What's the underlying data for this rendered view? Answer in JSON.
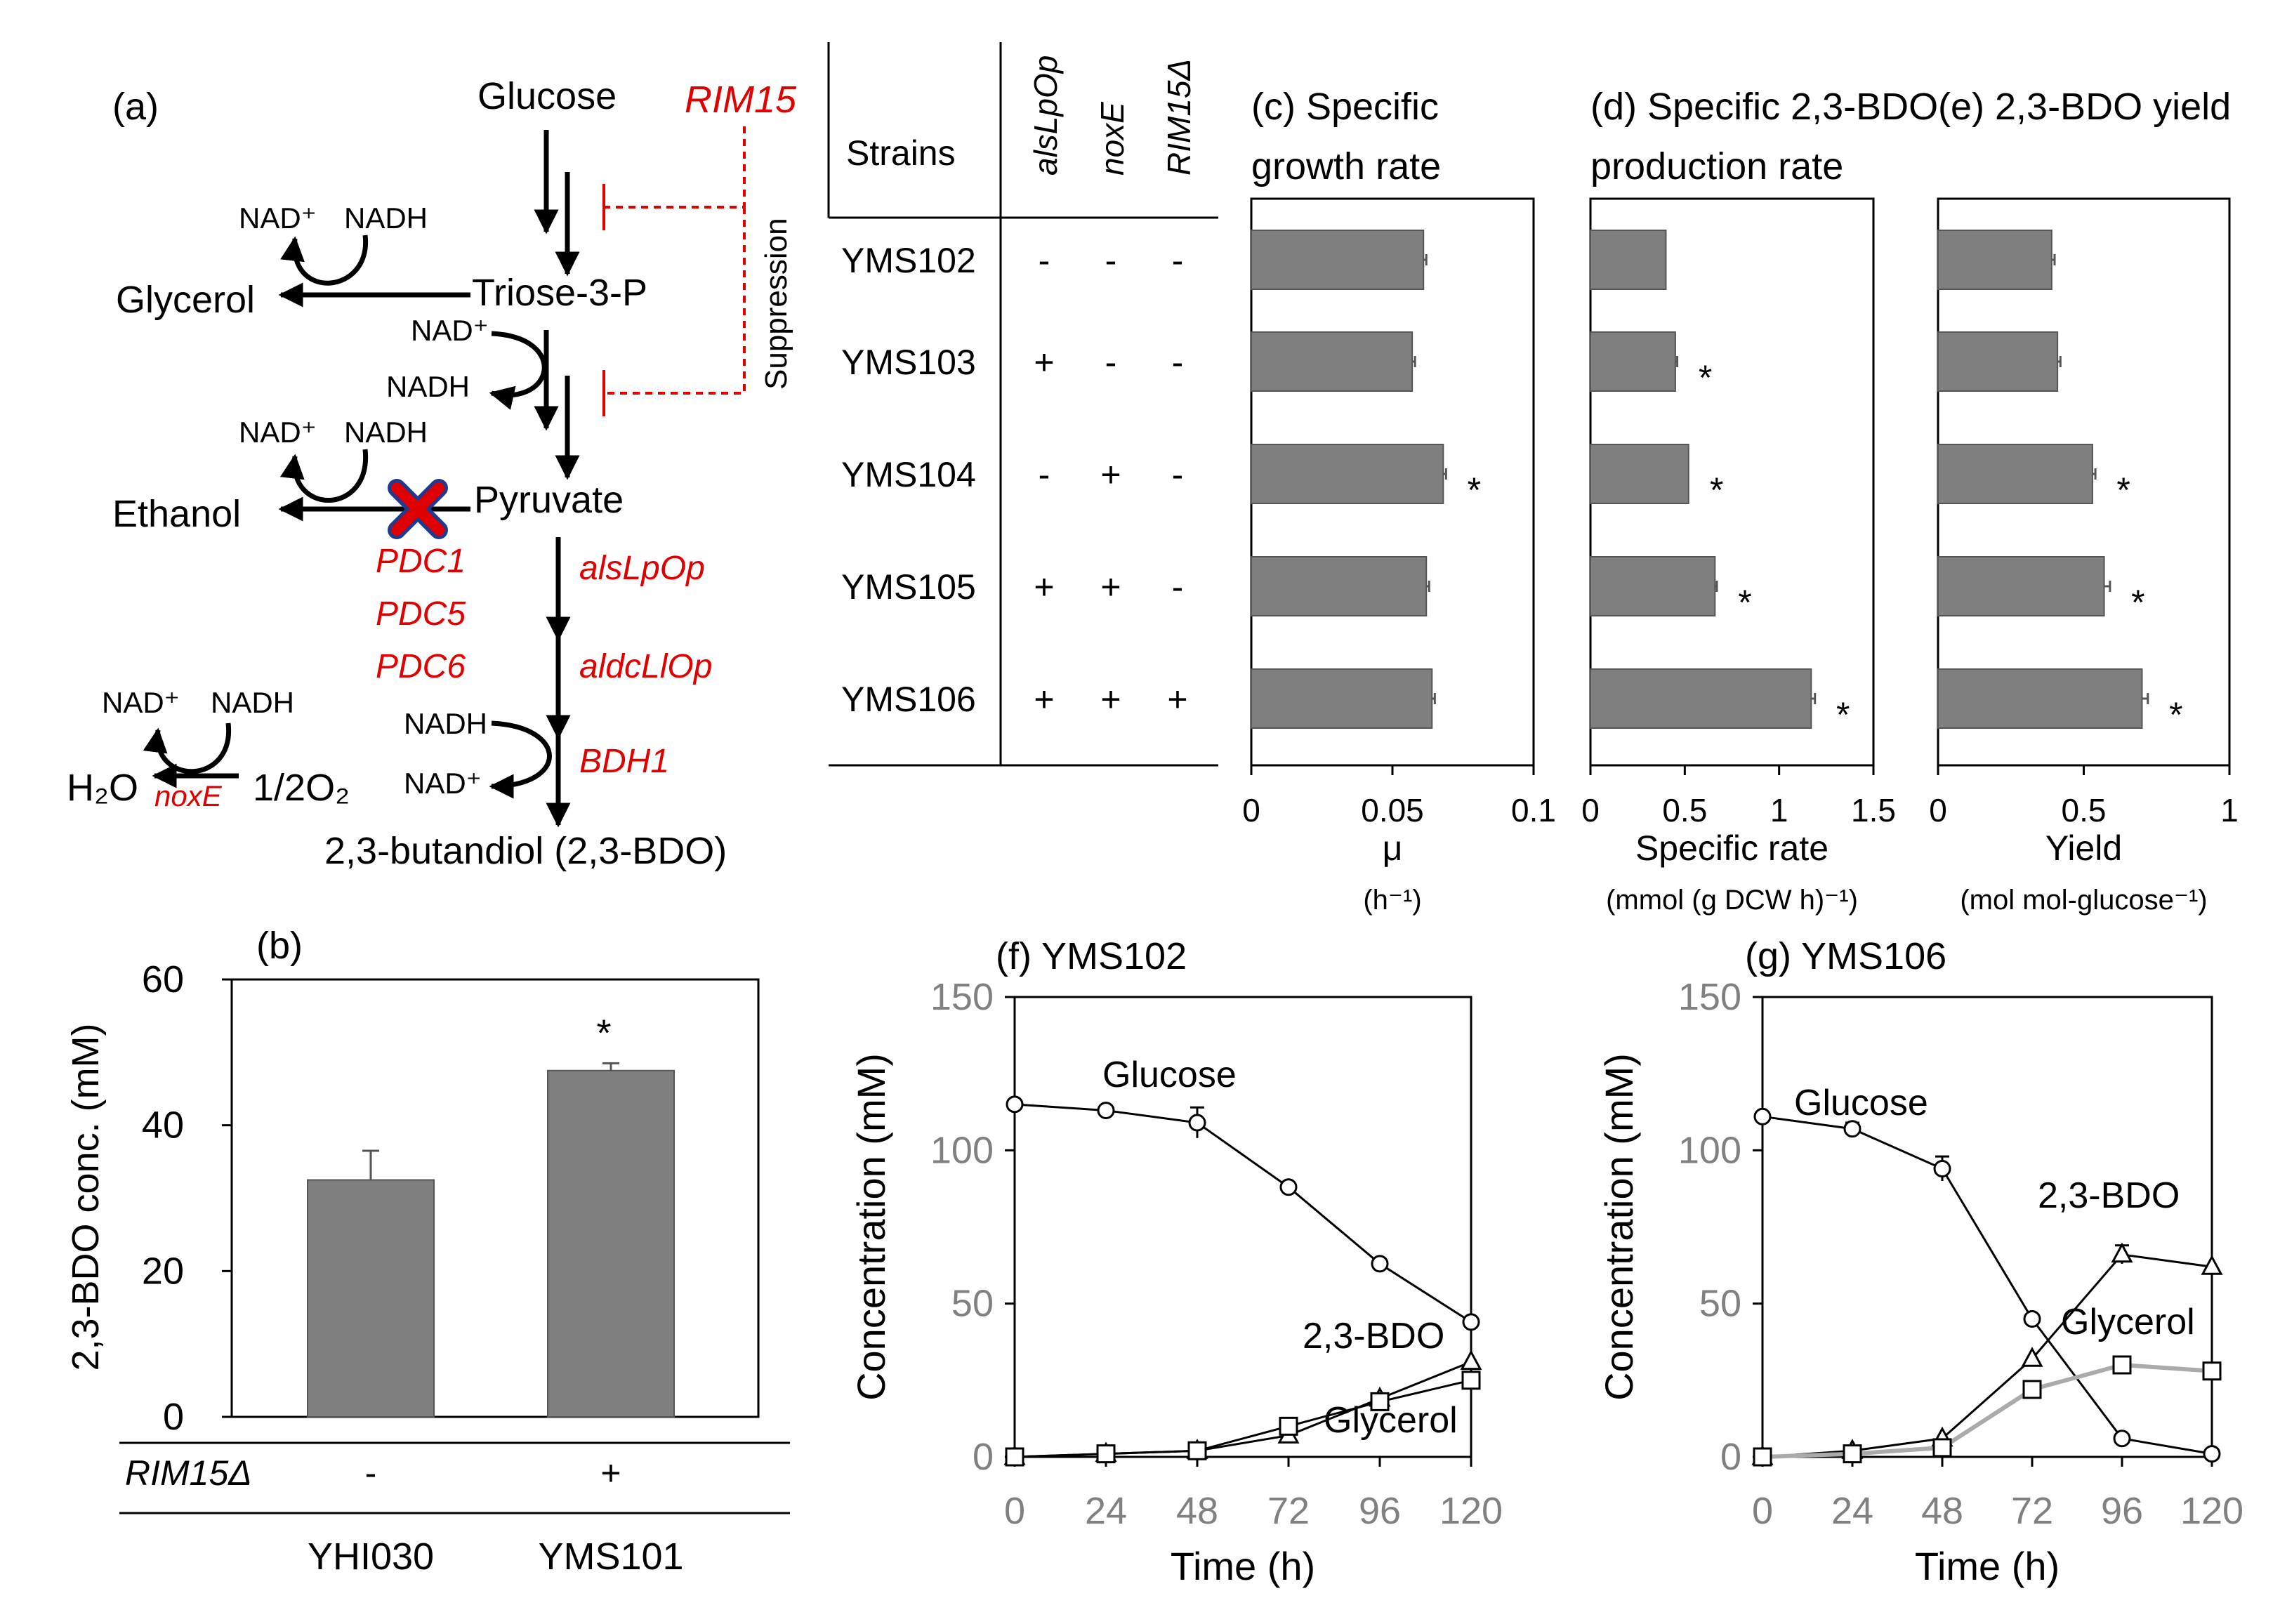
{
  "colors": {
    "bar": "#7f7f7f",
    "axis": "#000000",
    "gray_text": "#808080",
    "red": "#e00000",
    "glycerol_106": "#aaaaaa"
  },
  "a": {
    "label": "(a)",
    "glucose": "Glucose",
    "triose": "Triose-3-P",
    "pyruvate": "Pyruvate",
    "glycerol": "Glycerol",
    "ethanol": "Ethanol",
    "bdo": "2,3-butandiol (2,3-BDO)",
    "nad": "NAD⁺",
    "nadh": "NADH",
    "h2o": "H₂O",
    "o2": "1/2O₂",
    "rim15": "RIM15",
    "suppression": "Suppression",
    "pdc1": "PDC1",
    "pdc5": "PDC5",
    "pdc6": "PDC6",
    "als": "alsLpOp",
    "aldc": "aldcLlOp",
    "bdh1": "BDH1",
    "noxe": "noxE"
  },
  "table": {
    "strains_header": "Strains",
    "col_headers": [
      "alsLpOp",
      "noxE",
      "RIM15Δ"
    ],
    "rows": [
      {
        "strain": "YMS102",
        "marks": [
          "-",
          "-",
          "-"
        ]
      },
      {
        "strain": "YMS103",
        "marks": [
          "+",
          "-",
          "-"
        ]
      },
      {
        "strain": "YMS104",
        "marks": [
          "-",
          "+",
          "-"
        ]
      },
      {
        "strain": "YMS105",
        "marks": [
          "+",
          "+",
          "-"
        ]
      },
      {
        "strain": "YMS106",
        "marks": [
          "+",
          "+",
          "+"
        ]
      }
    ]
  },
  "chart_data": [
    {
      "panel": "b",
      "type": "bar",
      "title": "(b)",
      "ylabel": "2,3-BDO conc. (mM)",
      "ylim": [
        0,
        60
      ],
      "yticks": [
        0,
        20,
        40,
        60
      ],
      "categories": [
        "YHI030",
        "YMS101"
      ],
      "values": [
        32.5,
        47.5
      ],
      "errors": [
        4,
        1
      ],
      "rim15_label": "RIM15Δ",
      "rim15": [
        "-",
        "+"
      ],
      "significance": [
        "",
        "*"
      ]
    },
    {
      "panel": "c",
      "type": "bar",
      "orientation": "horizontal",
      "title_line1": "(c) Specific",
      "title_line2": "growth rate",
      "xlabel": "μ",
      "xunit": "(h⁻¹)",
      "xlim": [
        0,
        0.1
      ],
      "xticks": [
        0,
        0.05,
        0.1
      ],
      "xtick_labels": [
        "0",
        "0.05",
        "0.1"
      ],
      "categories": [
        "YMS102",
        "YMS103",
        "YMS104",
        "YMS105",
        "YMS106"
      ],
      "values": [
        0.061,
        0.057,
        0.068,
        0.062,
        0.064
      ],
      "errors": [
        0.001,
        0.001,
        0.001,
        0.001,
        0.001
      ],
      "significance": [
        "",
        "",
        "*",
        "",
        ""
      ]
    },
    {
      "panel": "d",
      "type": "bar",
      "orientation": "horizontal",
      "title_line1": "(d) Specific 2,3-BDO",
      "title_line2": "production rate",
      "xlabel": "Specific rate",
      "xunit": "(mmol (g DCW h)⁻¹)",
      "xlim": [
        0,
        1.5
      ],
      "xticks": [
        0,
        0.5,
        1,
        1.5
      ],
      "xtick_labels": [
        "0",
        "0.5",
        "1",
        "1.5"
      ],
      "categories": [
        "YMS102",
        "YMS103",
        "YMS104",
        "YMS105",
        "YMS106"
      ],
      "values": [
        0.4,
        0.45,
        0.52,
        0.66,
        1.17
      ],
      "errors": [
        0,
        0.01,
        0,
        0.01,
        0.02
      ],
      "significance": [
        "",
        "*",
        "*",
        "*",
        "*"
      ]
    },
    {
      "panel": "e",
      "type": "bar",
      "orientation": "horizontal",
      "title_line1": "(e) 2,3-BDO yield",
      "title_line2": "",
      "xlabel": "Yield",
      "xunit": "(mol mol-glucose⁻¹)",
      "xlim": [
        0,
        1
      ],
      "xticks": [
        0,
        0.5,
        1
      ],
      "xtick_labels": [
        "0",
        "0.5",
        "1"
      ],
      "categories": [
        "YMS102",
        "YMS103",
        "YMS104",
        "YMS105",
        "YMS106"
      ],
      "values": [
        0.39,
        0.41,
        0.53,
        0.57,
        0.7
      ],
      "errors": [
        0.01,
        0.01,
        0.01,
        0.02,
        0.02
      ],
      "significance": [
        "",
        "",
        "*",
        "*",
        "*"
      ]
    },
    {
      "panel": "f",
      "type": "line",
      "title": "(f) YMS102",
      "xlabel": "Time (h)",
      "ylabel": "Concentration (mM)",
      "xlim": [
        0,
        120
      ],
      "ylim": [
        0,
        150
      ],
      "xticks": [
        0,
        24,
        48,
        72,
        96,
        120
      ],
      "yticks": [
        0,
        50,
        100,
        150
      ],
      "x": [
        0,
        24,
        48,
        72,
        96,
        120
      ],
      "series": [
        {
          "name": "Glucose",
          "marker": "circle",
          "values": [
            115,
            113,
            109,
            88,
            63,
            44
          ],
          "errors": [
            0,
            0,
            5,
            0,
            0,
            0
          ]
        },
        {
          "name": "2,3-BDO",
          "marker": "triangle",
          "values": [
            0,
            1,
            2,
            7,
            19,
            31
          ],
          "errors": [
            0,
            0,
            0,
            0,
            0,
            0
          ]
        },
        {
          "name": "Glycerol",
          "marker": "square",
          "values": [
            0,
            1,
            2,
            10,
            18,
            25
          ],
          "errors": [
            0,
            0,
            0,
            0,
            0,
            0
          ]
        }
      ]
    },
    {
      "panel": "g",
      "type": "line",
      "title": "(g) YMS106",
      "xlabel": "Time (h)",
      "ylabel": "Concentration (mM)",
      "xlim": [
        0,
        120
      ],
      "ylim": [
        0,
        150
      ],
      "xticks": [
        0,
        24,
        48,
        72,
        96,
        120
      ],
      "yticks": [
        0,
        50,
        100,
        150
      ],
      "x": [
        0,
        24,
        48,
        72,
        96,
        120
      ],
      "series": [
        {
          "name": "Glucose",
          "marker": "circle",
          "values": [
            111,
            107,
            94,
            45,
            6,
            1
          ],
          "errors": [
            0,
            2,
            4,
            0,
            0,
            0
          ]
        },
        {
          "name": "2,3-BDO",
          "marker": "triangle",
          "values": [
            0,
            2,
            6,
            32,
            66,
            62
          ],
          "errors": [
            0,
            0,
            0,
            0,
            3,
            0
          ]
        },
        {
          "name": "Glycerol",
          "marker": "square",
          "values": [
            0,
            1,
            3,
            22,
            30,
            28
          ],
          "errors": [
            0,
            0,
            0,
            0,
            0,
            0
          ]
        }
      ]
    }
  ]
}
